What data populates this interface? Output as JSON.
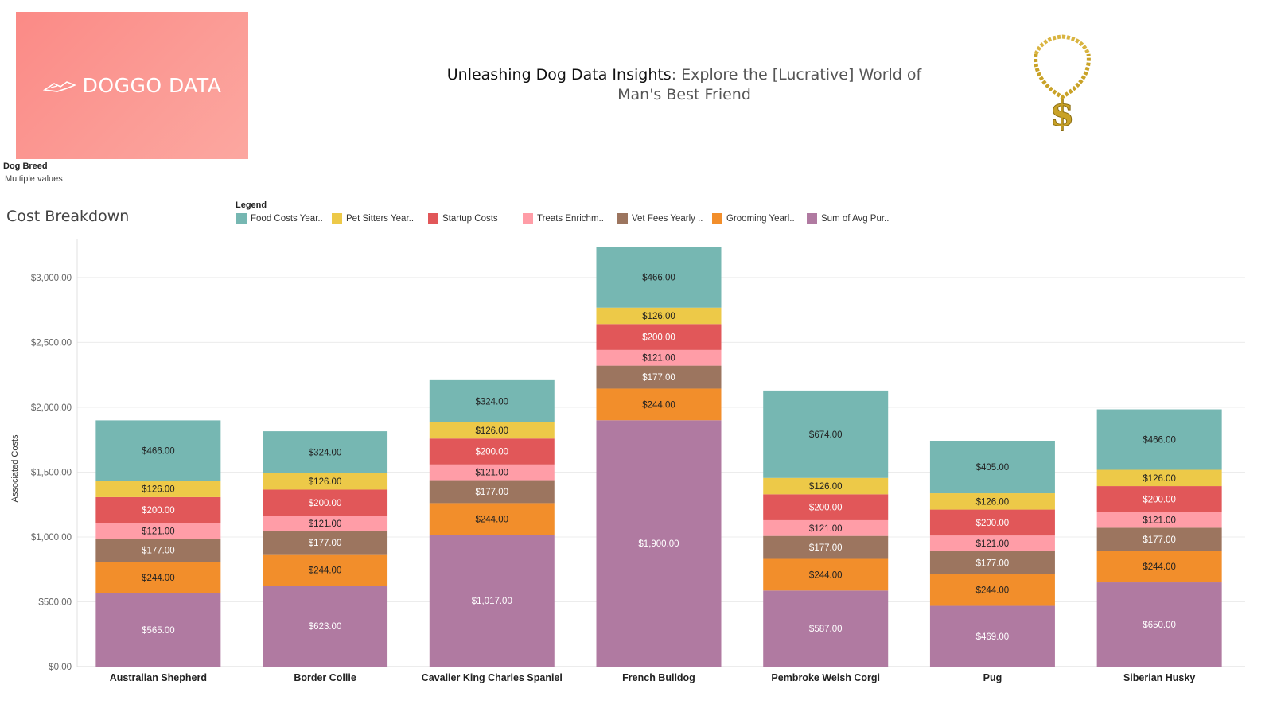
{
  "logo": {
    "text": "DOGGO DATA",
    "icon": "dog-logo-icon"
  },
  "header": {
    "title_bold": "Unleashing Dog Data Insights",
    "title_rest": ": Explore the [Lucrative] World of Man's Best Friend",
    "decor_icon": "gold-dollar-chain-icon"
  },
  "filter": {
    "label": "Dog Breed",
    "value": "Multiple values"
  },
  "chart_title": "Cost Breakdown",
  "legend_title": "Legend",
  "chart_data": {
    "type": "bar",
    "stacked": true,
    "ylabel": "Associated Costs",
    "xlabel": "",
    "ylim": [
      0,
      3300
    ],
    "yticks": [
      {
        "value": 0,
        "label": "$0.00"
      },
      {
        "value": 500,
        "label": "$500.00"
      },
      {
        "value": 1000,
        "label": "$1,000.00"
      },
      {
        "value": 1500,
        "label": "$1,500.00"
      },
      {
        "value": 2000,
        "label": "$2,000.00"
      },
      {
        "value": 2500,
        "label": "$2,500.00"
      },
      {
        "value": 3000,
        "label": "$3,000.00"
      }
    ],
    "grid": true,
    "legend_position": "top",
    "categories": [
      "Australian Shepherd",
      "Border Collie",
      "Cavalier King Charles Spaniel",
      "French Bulldog",
      "Pembroke Welsh Corgi",
      "Pug",
      "Siberian Husky"
    ],
    "series": [
      {
        "name": "Sum of Avg Pur..",
        "color": "#b07aa1",
        "text_color": "#ffffff",
        "values": [
          565,
          623,
          1017,
          1900,
          587,
          469,
          650
        ],
        "labels": [
          "$565.00",
          "$623.00",
          "$1,017.00",
          "$1,900.00",
          "$587.00",
          "$469.00",
          "$650.00"
        ]
      },
      {
        "name": "Grooming Yearl..",
        "color": "#f28e2b",
        "text_color": "#222222",
        "values": [
          244,
          244,
          244,
          244,
          244,
          244,
          244
        ],
        "labels": [
          "$244.00",
          "$244.00",
          "$244.00",
          "$244.00",
          "$244.00",
          "$244.00",
          "$244.00"
        ]
      },
      {
        "name": "Vet Fees Yearly ..",
        "color": "#9c755f",
        "text_color": "#ffffff",
        "values": [
          177,
          177,
          177,
          177,
          177,
          177,
          177
        ],
        "labels": [
          "$177.00",
          "$177.00",
          "$177.00",
          "$177.00",
          "$177.00",
          "$177.00",
          "$177.00"
        ]
      },
      {
        "name": "Treats Enrichm..",
        "color": "#ff9da7",
        "text_color": "#222222",
        "values": [
          121,
          121,
          121,
          121,
          121,
          121,
          121
        ],
        "labels": [
          "$121.00",
          "$121.00",
          "$121.00",
          "$121.00",
          "$121.00",
          "$121.00",
          "$121.00"
        ]
      },
      {
        "name": "Startup Costs",
        "color": "#e15759",
        "text_color": "#ffffff",
        "values": [
          200,
          200,
          200,
          200,
          200,
          200,
          200
        ],
        "labels": [
          "$200.00",
          "$200.00",
          "$200.00",
          "$200.00",
          "$200.00",
          "$200.00",
          "$200.00"
        ]
      },
      {
        "name": "Pet Sitters Year..",
        "color": "#edc948",
        "text_color": "#222222",
        "values": [
          126,
          126,
          126,
          126,
          126,
          126,
          126
        ],
        "labels": [
          "$126.00",
          "$126.00",
          "$126.00",
          "$126.00",
          "$126.00",
          "$126.00",
          "$126.00"
        ]
      },
      {
        "name": "Food Costs Year..",
        "color": "#76b7b2",
        "text_color": "#222222",
        "values": [
          466,
          324,
          324,
          466,
          674,
          405,
          466
        ],
        "labels": [
          "$466.00",
          "$324.00",
          "$324.00",
          "$466.00",
          "$674.00",
          "$405.00",
          "$466.00"
        ]
      }
    ],
    "legend_order": [
      "Food Costs Year..",
      "Pet Sitters Year..",
      "Startup Costs",
      "Treats Enrichm..",
      "Vet Fees Yearly ..",
      "Grooming Yearl..",
      "Sum of Avg Pur.."
    ]
  }
}
